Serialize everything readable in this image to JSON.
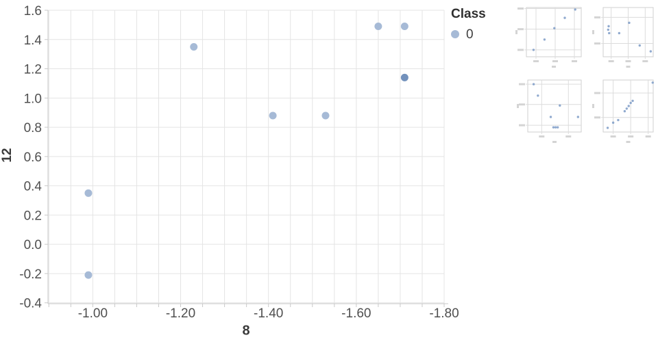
{
  "colors": {
    "marker": "#a6bad6",
    "marker_overlap": "#7291bc",
    "grid": "#e4e4e4",
    "axis_line": "#c9c9c9",
    "tick_stub": "#c9c9c9",
    "tick_text": "#4f4f4f",
    "axis_title_text": "#3a3a3a",
    "thumb_frame": "#cfcfcf",
    "thumb_grid": "#dcdcdc",
    "thumb_point": "#7d9bc7",
    "thumb_smudge": "#d4d4d4"
  },
  "legend": {
    "title": "Class",
    "entries": [
      {
        "label": "0",
        "marker_color": "#a6bad6"
      }
    ]
  },
  "chart_data": [
    {
      "type": "scatter",
      "title": "",
      "xlabel": "8",
      "ylabel": "12",
      "x_axis": {
        "reversed": true,
        "range": [
          -0.898,
          -1.8
        ],
        "major_ticks": [
          -1.0,
          -1.2,
          -1.4,
          -1.6,
          -1.8
        ],
        "major_tick_labels": [
          "-1.00",
          "-1.20",
          "-1.40",
          "-1.60",
          "-1.80"
        ],
        "minor_tick_step": 0.05,
        "grid": "minor"
      },
      "y_axis": {
        "range": [
          -0.406,
          1.6
        ],
        "major_ticks": [
          1.6,
          1.4,
          1.2,
          1.0,
          0.8,
          0.6,
          0.4,
          0.2,
          0.0,
          -0.2,
          -0.4
        ],
        "major_tick_labels": [
          "1.6",
          "1.4",
          "1.2",
          "1.0",
          "0.8",
          "0.6",
          "0.4",
          "0.2",
          "0.0",
          "-0.2",
          "-0.4"
        ],
        "grid": "major"
      },
      "legend_position": "top-right-outside",
      "series": [
        {
          "name": "0",
          "marker_color": "#a6bad6",
          "points": [
            {
              "x": -0.99,
              "y": 0.35
            },
            {
              "x": -0.99,
              "y": -0.21
            },
            {
              "x": -1.23,
              "y": 1.35
            },
            {
              "x": -1.41,
              "y": 0.88
            },
            {
              "x": -1.53,
              "y": 0.88
            },
            {
              "x": -1.65,
              "y": 1.49
            },
            {
              "x": -1.71,
              "y": 1.49
            },
            {
              "x": -1.71,
              "y": 1.14,
              "overlap_darker": true
            }
          ]
        }
      ]
    },
    {
      "type": "scatter",
      "role": "thumbnail",
      "tick_labels_illegible": true,
      "grid_norm": {
        "v": [
          0.175,
          0.525,
          0.875
        ],
        "h": [
          0.02,
          0.44,
          0.86
        ]
      },
      "points_norm": [
        [
          0.51,
          0.42
        ],
        [
          0.33,
          0.65
        ],
        [
          0.13,
          0.86
        ],
        [
          0.7,
          0.21
        ],
        [
          0.89,
          0.04
        ]
      ]
    },
    {
      "type": "scatter",
      "role": "thumbnail",
      "tick_labels_illegible": true,
      "grid_norm": {
        "v": [
          0.16,
          0.5,
          0.84
        ],
        "h": [
          0.2,
          0.73
        ]
      },
      "points_norm": [
        [
          0.11,
          0.38
        ],
        [
          0.1,
          0.45
        ],
        [
          0.12,
          0.52
        ],
        [
          0.52,
          0.31
        ],
        [
          0.32,
          0.52
        ],
        [
          0.73,
          0.77
        ],
        [
          0.95,
          0.89
        ]
      ]
    },
    {
      "type": "scatter",
      "role": "thumbnail",
      "tick_labels_illegible": true,
      "grid_norm": {
        "v": [
          0.26,
          0.76
        ],
        "h": [
          0.08,
          0.47,
          0.87
        ]
      },
      "points_norm": [
        [
          0.11,
          0.08
        ],
        [
          0.19,
          0.3
        ],
        [
          0.6,
          0.49
        ],
        [
          0.43,
          0.71
        ],
        [
          0.48,
          0.91
        ],
        [
          0.52,
          0.91
        ],
        [
          0.56,
          0.91
        ],
        [
          0.94,
          0.71
        ]
      ]
    },
    {
      "type": "scatter",
      "role": "thumbnail",
      "tick_labels_illegible": true,
      "grid_norm": {
        "v": [
          0.2,
          0.55,
          0.9
        ],
        "h": [
          0.25,
          0.72
        ]
      },
      "points_norm": [
        [
          0.09,
          0.92
        ],
        [
          0.2,
          0.82
        ],
        [
          0.3,
          0.77
        ],
        [
          0.43,
          0.6
        ],
        [
          0.47,
          0.55
        ],
        [
          0.51,
          0.5
        ],
        [
          0.55,
          0.44
        ],
        [
          0.59,
          0.4
        ],
        [
          0.99,
          0.05
        ]
      ]
    }
  ]
}
